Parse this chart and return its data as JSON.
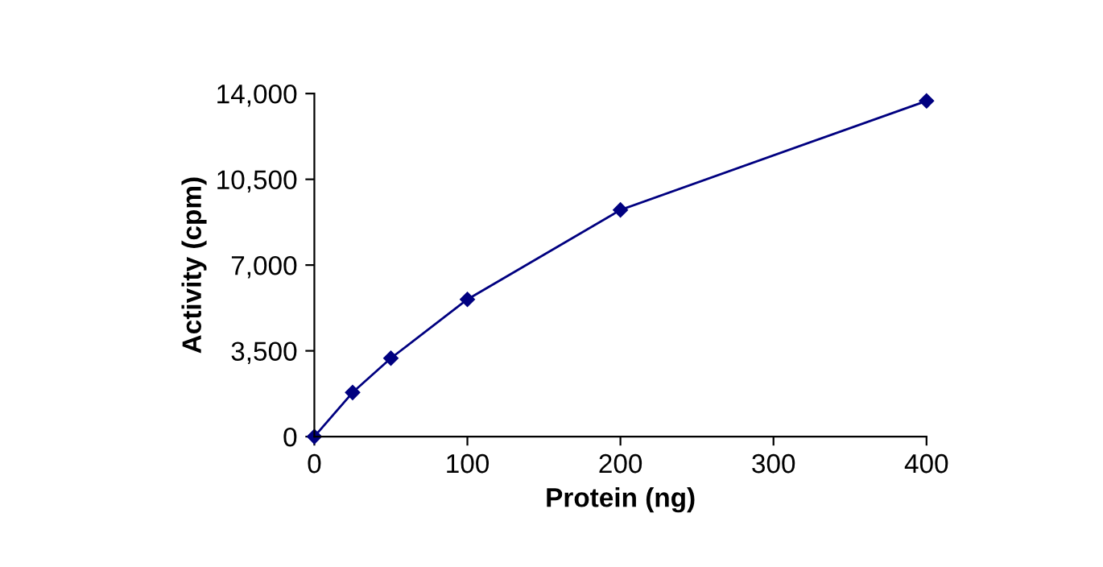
{
  "chart_data": {
    "type": "line",
    "xlabel": "Protein (ng)",
    "ylabel": "Activity (cpm)",
    "xlim": [
      0,
      400
    ],
    "xticks": [
      0,
      100,
      200,
      300,
      400
    ],
    "ylim": [
      0,
      14000
    ],
    "yticks": [
      {
        "value": 0,
        "label": "0"
      },
      {
        "value": 3500,
        "label": "3,500"
      },
      {
        "value": 7000,
        "label": "7,000"
      },
      {
        "value": 10500,
        "label": "10,500"
      },
      {
        "value": 14000,
        "label": "14,000"
      }
    ],
    "x": [
      0,
      25,
      50,
      100,
      200,
      400
    ],
    "series": [
      {
        "color": "#000080",
        "values": [
          0,
          1800,
          3200,
          5600,
          9250,
          13700
        ]
      }
    ],
    "marker": "diamond",
    "line_style": "solid",
    "grid": false,
    "legend": false
  }
}
